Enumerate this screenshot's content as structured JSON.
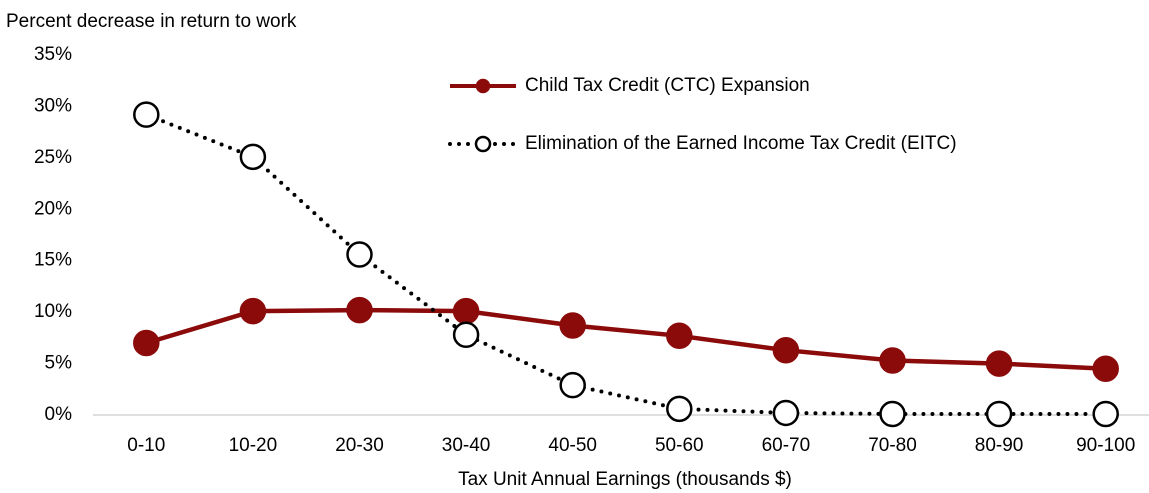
{
  "chart_data": {
    "type": "line",
    "title": "Percent decrease in return to work",
    "x_label": "Tax Unit Annual Earnings (thousands $)",
    "categories": [
      "0-10",
      "10-20",
      "20-30",
      "30-40",
      "40-50",
      "50-60",
      "60-70",
      "70-80",
      "80-90",
      "90-100"
    ],
    "series": [
      {
        "name": "Child Tax Credit (CTC) Expansion",
        "color": "#8b0a0a",
        "style": "solid",
        "marker": "filled",
        "values": [
          7.0,
          10.1,
          10.2,
          10.1,
          8.7,
          7.7,
          6.3,
          5.3,
          5.0,
          4.5
        ]
      },
      {
        "name": "Elimination of the Earned Income Tax Credit (EITC)",
        "color": "#000000",
        "style": "dotted",
        "marker": "open",
        "values": [
          29.2,
          25.1,
          15.6,
          7.8,
          2.9,
          0.6,
          0.2,
          0.1,
          0.1,
          0.1
        ]
      }
    ],
    "ylim": [
      0,
      35
    ],
    "yticks": [
      {
        "value": 0,
        "label": "0%"
      },
      {
        "value": 5,
        "label": "5%"
      },
      {
        "value": 10,
        "label": "10%"
      },
      {
        "value": 15,
        "label": "15%"
      },
      {
        "value": 20,
        "label": "20%"
      },
      {
        "value": 25,
        "label": "25%"
      },
      {
        "value": 30,
        "label": "30%"
      },
      {
        "value": 35,
        "label": "35%"
      }
    ],
    "grid": false
  }
}
